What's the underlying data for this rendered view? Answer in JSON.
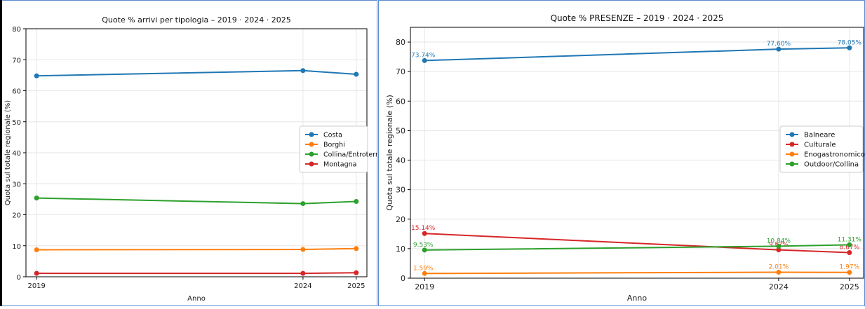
{
  "chart_data": [
    {
      "type": "line",
      "title": "Quote % arrivi per tipologia – 2019 · 2024 · 2025",
      "xlabel": "Anno",
      "ylabel": "Quota sul totale regionale (%)",
      "x": [
        "2019",
        "2024",
        "2025"
      ],
      "x_numeric": [
        2019,
        2024,
        2025
      ],
      "xlim": [
        2018.8,
        2025.2
      ],
      "ylim": [
        0,
        80
      ],
      "yticks": [
        0,
        10,
        20,
        30,
        40,
        50,
        60,
        70,
        80
      ],
      "grid": true,
      "legend_position": "center-right",
      "series": [
        {
          "name": "Costa",
          "color": "#1f77b4",
          "values": [
            64.8,
            66.5,
            65.3
          ]
        },
        {
          "name": "Borghi",
          "color": "#ff7f0e",
          "values": [
            8.7,
            8.8,
            9.1
          ]
        },
        {
          "name": "Collina/Entroterra",
          "color": "#2ca02c",
          "values": [
            25.4,
            23.6,
            24.3
          ]
        },
        {
          "name": "Montagna",
          "color": "#d62728",
          "values": [
            1.1,
            1.1,
            1.3
          ]
        }
      ]
    },
    {
      "type": "line",
      "title": "Quote % PRESENZE – 2019 · 2024 · 2025",
      "xlabel": "Anno",
      "ylabel": "Quota sul totale regionale (%)",
      "x": [
        "2019",
        "2024",
        "2025"
      ],
      "x_numeric": [
        2019,
        2024,
        2025
      ],
      "xlim": [
        2018.8,
        2025.2
      ],
      "ylim": [
        0,
        85
      ],
      "yticks": [
        0,
        10,
        20,
        30,
        40,
        50,
        60,
        70,
        80
      ],
      "grid": true,
      "legend_position": "center-right",
      "series": [
        {
          "name": "Balneare",
          "color": "#1f77b4",
          "values": [
            73.74,
            77.6,
            78.05
          ],
          "labels": [
            "73.74%",
            "77.60%",
            "78.05%"
          ]
        },
        {
          "name": "Culturale",
          "color": "#d62728",
          "values": [
            15.14,
            9.6,
            8.67
          ],
          "labels": [
            "15.14%",
            "9.6?%",
            "8.67%"
          ]
        },
        {
          "name": "Enogastronomico",
          "color": "#ff7f0e",
          "values": [
            1.59,
            2.01,
            1.97
          ],
          "labels": [
            "1.59%",
            "2.01%",
            "1.97%"
          ]
        },
        {
          "name": "Outdoor/Collina",
          "color": "#2ca02c",
          "values": [
            9.53,
            10.84,
            11.31
          ],
          "labels": [
            "9.53%",
            "10.84%",
            "11.31%"
          ]
        }
      ]
    }
  ]
}
